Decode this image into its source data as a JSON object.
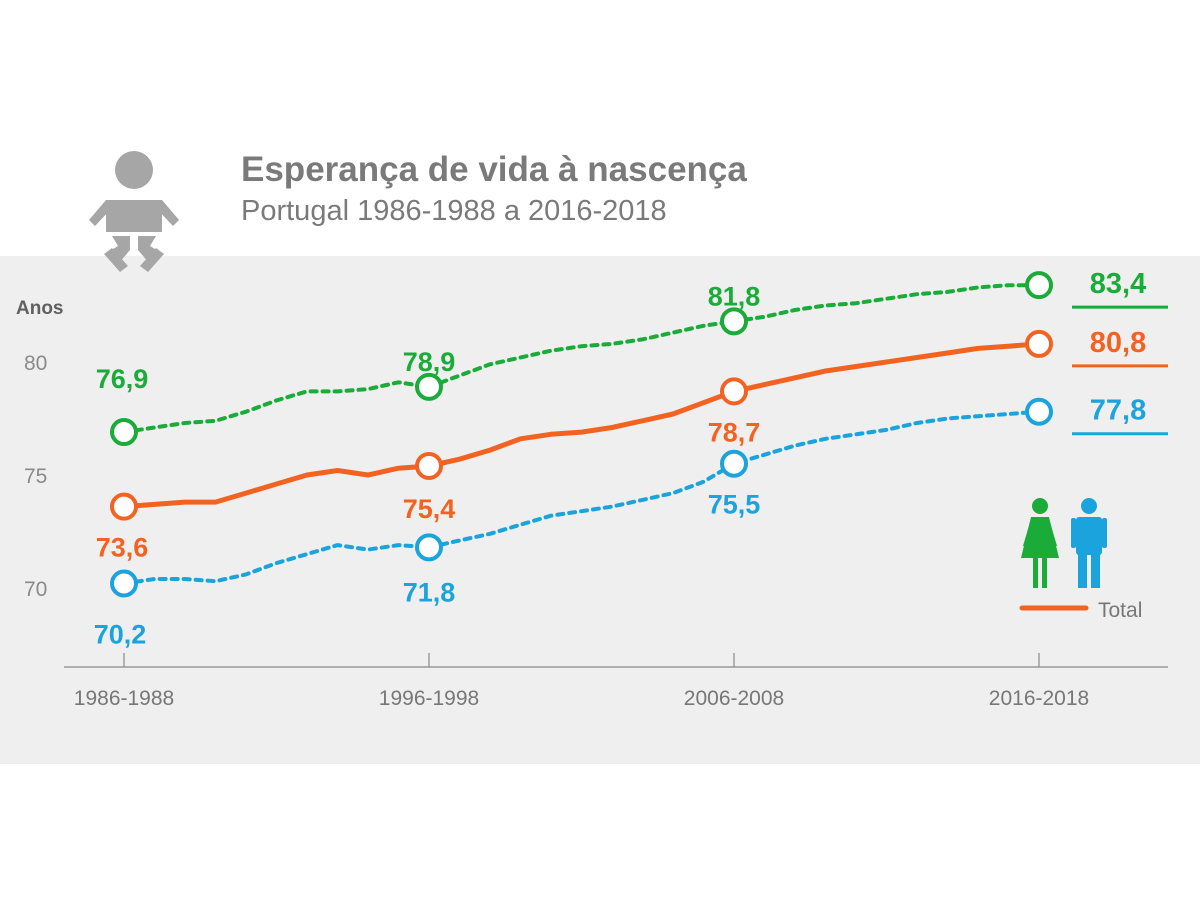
{
  "header": {
    "title": "Esperança de vida à nascença",
    "subtitle": "Portugal 1986-1988 a 2016-2018"
  },
  "chart_data": {
    "type": "line",
    "ylabel": "Anos",
    "ylim": [
      66.5,
      84.5
    ],
    "yticks": [
      70,
      75,
      80
    ],
    "categories": [
      "1986-1988",
      "1996-1998",
      "2006-2008",
      "2016-2018"
    ],
    "x": [
      0,
      1,
      2,
      3,
      4,
      5,
      6,
      7,
      8,
      9,
      10,
      11,
      12,
      13,
      14,
      15,
      16,
      17,
      18,
      19,
      20,
      21,
      22,
      23,
      24,
      25,
      26,
      27,
      28,
      29,
      30
    ],
    "series": [
      {
        "key": "mulheres",
        "color": "#1aab39",
        "style": "dashed",
        "values": [
          76.9,
          77.1,
          77.3,
          77.4,
          77.8,
          78.3,
          78.7,
          78.7,
          78.8,
          79.1,
          78.9,
          79.4,
          79.9,
          80.2,
          80.5,
          80.7,
          80.8,
          81.0,
          81.3,
          81.6,
          81.8,
          82.0,
          82.3,
          82.5,
          82.6,
          82.8,
          83.0,
          83.1,
          83.3,
          83.4,
          83.4
        ],
        "labelled": [
          76.9,
          78.9,
          81.8,
          83.4
        ]
      },
      {
        "key": "total",
        "color": "#f26322",
        "style": "solid",
        "values": [
          73.6,
          73.7,
          73.8,
          73.8,
          74.2,
          74.6,
          75.0,
          75.2,
          75.0,
          75.3,
          75.4,
          75.7,
          76.1,
          76.6,
          76.8,
          76.9,
          77.1,
          77.4,
          77.7,
          78.2,
          78.7,
          79.0,
          79.3,
          79.6,
          79.8,
          80.0,
          80.2,
          80.4,
          80.6,
          80.7,
          80.8
        ],
        "labelled": [
          73.6,
          75.4,
          78.7,
          80.8
        ],
        "legend": "Total"
      },
      {
        "key": "homens",
        "color": "#1ba3dd",
        "style": "dashed",
        "values": [
          70.2,
          70.4,
          70.4,
          70.3,
          70.6,
          71.1,
          71.5,
          71.9,
          71.7,
          71.9,
          71.8,
          72.1,
          72.4,
          72.8,
          73.2,
          73.4,
          73.6,
          73.9,
          74.2,
          74.7,
          75.5,
          75.9,
          76.3,
          76.6,
          76.8,
          77.0,
          77.3,
          77.5,
          77.6,
          77.7,
          77.8
        ],
        "labelled": [
          70.2,
          71.8,
          75.5,
          77.8
        ]
      }
    ],
    "colors": {
      "mulheres": "#1aab39",
      "total": "#f26322",
      "homens": "#1ba3dd",
      "axis": "#888888",
      "panel": "#efefef"
    },
    "icons": [
      "baby-icon",
      "woman-icon",
      "man-icon"
    ]
  }
}
